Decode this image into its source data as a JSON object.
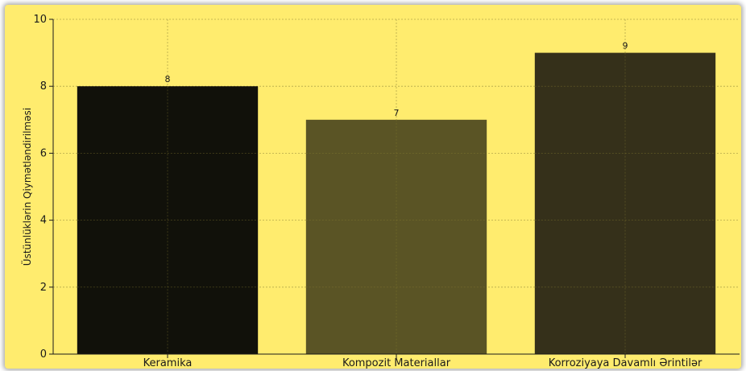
{
  "chart_data": {
    "type": "bar",
    "title": "",
    "xlabel": "",
    "ylabel": "Üstünlüklərin Qiymətləndirilməsi",
    "categories": [
      "Keramika",
      "Kompozit Materiallar",
      "Korroziyaya Davamlı Ərintilər"
    ],
    "values": [
      8,
      7,
      9
    ],
    "data_labels": [
      "8",
      "7",
      "9"
    ],
    "ylim": [
      0,
      10
    ],
    "yticks": [
      0,
      2,
      4,
      6,
      8,
      10
    ],
    "grid": true,
    "legend": "none",
    "colors": [
      "#11110a",
      "#5a5425",
      "#35301a"
    ],
    "background": "#ffec6e",
    "grid_color": "#b5a84a"
  }
}
